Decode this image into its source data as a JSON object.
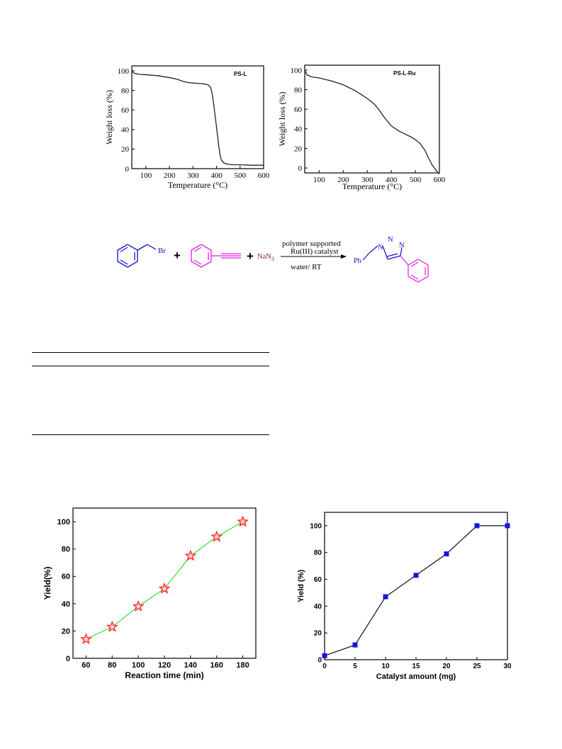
{
  "chart_data": [
    {
      "type": "line",
      "label": "PS-L",
      "xlabel": "Temperature (°C)",
      "ylabel": "Weight loss (%)",
      "xlim": [
        40,
        600
      ],
      "ylim": [
        0,
        105
      ],
      "xticks": [
        "100",
        "200",
        "300",
        "400",
        "500",
        "600"
      ],
      "yticks": [
        "0",
        "20",
        "40",
        "60",
        "80",
        "100"
      ],
      "grid": false,
      "line_color": "#222222",
      "series": [
        {
          "x": [
            40,
            50,
            70,
            100,
            150,
            200,
            230,
            260,
            280,
            300,
            330,
            350,
            365,
            375,
            380,
            385,
            390,
            395,
            400,
            405,
            410,
            415,
            420,
            430,
            440,
            450,
            470,
            500,
            550,
            600
          ],
          "y": [
            100,
            97.5,
            96.5,
            96,
            95,
            93,
            91.5,
            89,
            88,
            87.5,
            87,
            86.5,
            85.5,
            83,
            78,
            71,
            62,
            52,
            42,
            32,
            22,
            14,
            9,
            6,
            5,
            4.5,
            4,
            4,
            3.5,
            3.5
          ]
        }
      ]
    },
    {
      "type": "line",
      "label": "PS-L-Ru",
      "xlabel": "Temperature (°C)",
      "ylabel": "Weight loss (%)",
      "xlim": [
        40,
        600
      ],
      "ylim": [
        -5,
        105
      ],
      "xticks": [
        "100",
        "200",
        "300",
        "400",
        "500",
        "600"
      ],
      "yticks": [
        "0",
        "20",
        "40",
        "60",
        "80",
        "100"
      ],
      "grid": false,
      "line_color": "#222222",
      "series": [
        {
          "x": [
            40,
            50,
            70,
            100,
            150,
            200,
            250,
            300,
            330,
            350,
            370,
            400,
            430,
            450,
            480,
            500,
            520,
            540,
            555,
            570,
            585,
            595,
            600
          ],
          "y": [
            100,
            95,
            93,
            92,
            89,
            85,
            79,
            71,
            65,
            59,
            52,
            43,
            38,
            35.5,
            32,
            29,
            25,
            18,
            10,
            3,
            -2,
            -5,
            -6
          ]
        }
      ]
    },
    {
      "type": "line",
      "xlabel": "Reaction time (min)",
      "ylabel": "Yield(%)",
      "xlim": [
        50,
        190
      ],
      "ylim": [
        0,
        110
      ],
      "xticks": [
        "60",
        "80",
        "100",
        "120",
        "140",
        "160",
        "180"
      ],
      "yticks": [
        "0",
        "20",
        "40",
        "60",
        "80",
        "100"
      ],
      "grid": false,
      "marker": "star",
      "line_color": "#33dd33",
      "marker_color": "#ff2222",
      "categories": [
        60,
        80,
        100,
        120,
        140,
        160,
        180
      ],
      "values": [
        14,
        23,
        38,
        51,
        75,
        89,
        100
      ]
    },
    {
      "type": "line",
      "xlabel": "Catalyst amount (mg)",
      "ylabel": "Yield (%)",
      "xlim": [
        0,
        30
      ],
      "ylim": [
        0,
        110
      ],
      "xticks": [
        "0",
        "5",
        "10",
        "15",
        "20",
        "25",
        "30"
      ],
      "yticks": [
        "0",
        "20",
        "40",
        "60",
        "80",
        "100"
      ],
      "grid": false,
      "marker": "square",
      "line_color": "#111111",
      "marker_color": "#1515e0",
      "categories": [
        0,
        5,
        10,
        15,
        20,
        25,
        30
      ],
      "values": [
        3,
        11,
        47,
        63,
        79,
        100,
        100
      ]
    }
  ],
  "scheme": {
    "br": "Br",
    "plus": "+",
    "nan3": "NaN",
    "nan3_sub": "3",
    "cond1": "polymer supported",
    "cond2": "Ru(III) catalyst",
    "cond3": "water/ RT",
    "ph": "Ph",
    "n1": "N",
    "n2": "N",
    "n3": "N",
    "colors": {
      "benzyl": "#1010d0",
      "alkyne": "#e01ce0",
      "reagent": "#7a2b2b",
      "product_ring": "#1010d0",
      "phenyl": "#e01ce0"
    }
  }
}
